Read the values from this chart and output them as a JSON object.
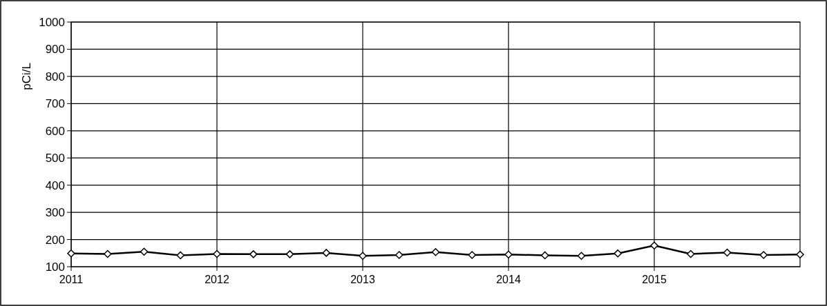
{
  "chart_data": {
    "type": "line",
    "ylabel": "pCi/L",
    "x": [
      2011,
      2011.25,
      2011.5,
      2011.75,
      2012,
      2012.25,
      2012.5,
      2012.75,
      2013,
      2013.25,
      2013.5,
      2013.75,
      2014,
      2014.25,
      2014.5,
      2014.75,
      2015,
      2015.25,
      2015.5,
      2015.75,
      2016
    ],
    "series": [
      {
        "color": "#000000",
        "values": [
          149,
          147,
          155,
          142,
          147,
          146,
          146,
          151,
          140,
          143,
          154,
          143,
          145,
          142,
          140,
          149,
          178,
          147,
          152,
          143,
          145
        ]
      }
    ],
    "xlim": [
      2011,
      2016
    ],
    "xticks": [
      2011,
      2012,
      2013,
      2014,
      2015
    ],
    "ylim": [
      100,
      1000
    ],
    "yticks": [
      100,
      200,
      300,
      400,
      500,
      600,
      700,
      800,
      900,
      1000
    ],
    "grid": true,
    "marker": "diamond",
    "line_style": "solid"
  }
}
